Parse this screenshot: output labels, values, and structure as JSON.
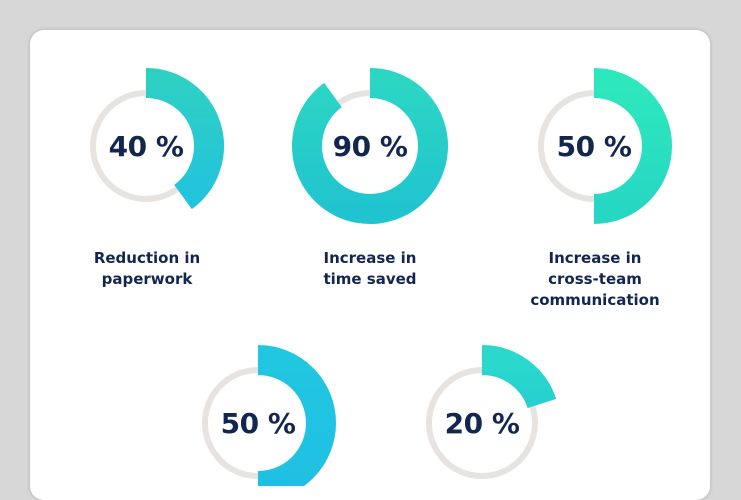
{
  "chart_data": {
    "type": "donut",
    "items": [
      {
        "value": 40,
        "label": "40 %",
        "caption": [
          "Reduction in",
          "paperwork"
        ],
        "color_start": "#2ed0c4",
        "color_end": "#22c3dc"
      },
      {
        "value": 90,
        "label": "90 %",
        "caption": [
          "Increase in",
          "time saved"
        ],
        "color_start": "#2cd6c3",
        "color_end": "#20c4cf"
      },
      {
        "value": 50,
        "label": "50 %",
        "caption": [
          "Increase in",
          "cross-team",
          "communication"
        ],
        "color_start": "#2ee8bd",
        "color_end": "#26d7c3"
      },
      {
        "value": 50,
        "label": "50 %",
        "caption": [],
        "color_start": "#21c6e0",
        "color_end": "#20c0e2"
      },
      {
        "value": 20,
        "label": "20 %",
        "caption": [],
        "color_start": "#2ad9cc",
        "color_end": "#26d0cf"
      }
    ]
  },
  "colors": {
    "track": "#e6e3e0",
    "text": "#12264f",
    "card": "#ffffff",
    "background": "#d7d7d7"
  }
}
